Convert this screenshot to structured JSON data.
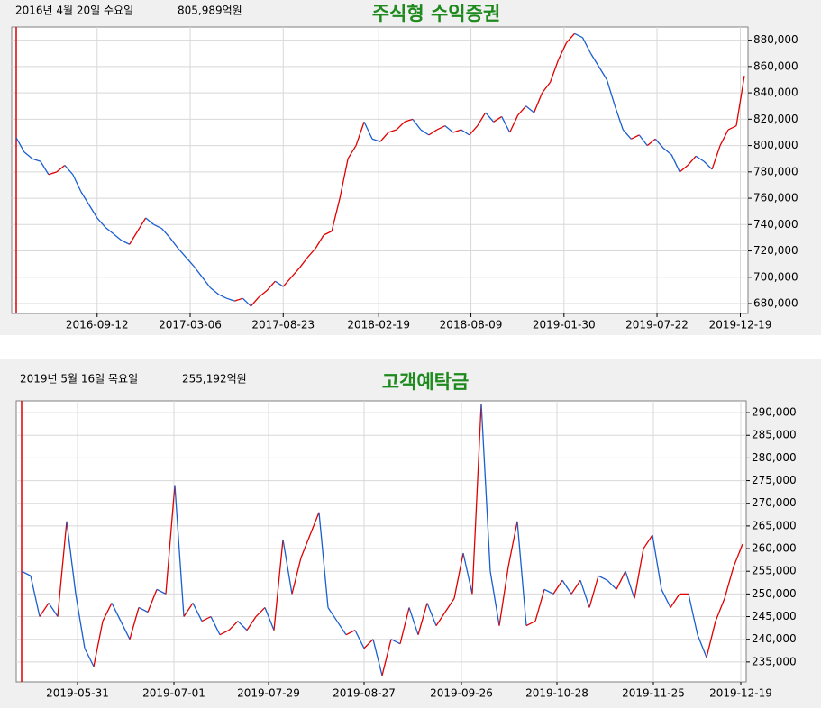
{
  "chart_data": [
    {
      "type": "line",
      "title": "주식형 수익증권",
      "cursor_date": "2016년 4월 20일 수요일",
      "cursor_value": "805,989억원",
      "up_color": "#e00000",
      "down_color": "#1a5fd0",
      "grid": true,
      "ylim": [
        672500,
        890000
      ],
      "yticks": [
        {
          "value": 680000,
          "label": "680,000"
        },
        {
          "value": 700000,
          "label": "700,000"
        },
        {
          "value": 720000,
          "label": "720,000"
        },
        {
          "value": 740000,
          "label": "740,000"
        },
        {
          "value": 760000,
          "label": "760,000"
        },
        {
          "value": 780000,
          "label": "780,000"
        },
        {
          "value": 800000,
          "label": "800,000"
        },
        {
          "value": 820000,
          "label": "820,000"
        },
        {
          "value": 840000,
          "label": "840,000"
        },
        {
          "value": 860000,
          "label": "860,000"
        },
        {
          "value": 880000,
          "label": "880,000"
        }
      ],
      "xticks": [
        {
          "value": 10,
          "label": "2016-09-12"
        },
        {
          "value": 21.5,
          "label": "2017-03-06"
        },
        {
          "value": 33,
          "label": "2017-08-23"
        },
        {
          "value": 44.8,
          "label": "2018-02-19"
        },
        {
          "value": 56.2,
          "label": "2018-08-09"
        },
        {
          "value": 67.7,
          "label": "2019-01-30"
        },
        {
          "value": 79.2,
          "label": "2019-07-22"
        },
        {
          "value": 89.5,
          "label": "2019-12-19"
        }
      ],
      "values": [
        806000,
        795000,
        790000,
        788000,
        778000,
        780000,
        785000,
        778000,
        765000,
        755000,
        745000,
        738000,
        733000,
        728000,
        725000,
        735000,
        745000,
        740000,
        737000,
        730000,
        722000,
        715000,
        708000,
        700000,
        692000,
        687000,
        684000,
        682000,
        684000,
        678000,
        685000,
        690000,
        697000,
        693000,
        700000,
        707000,
        715000,
        722000,
        732000,
        735000,
        760000,
        790000,
        800000,
        818000,
        805000,
        803000,
        810000,
        812000,
        818000,
        820000,
        812000,
        808000,
        812000,
        815000,
        810000,
        812000,
        808000,
        815000,
        825000,
        818000,
        822000,
        810000,
        823000,
        830000,
        825000,
        840000,
        848000,
        865000,
        878000,
        885000,
        882000,
        870000,
        860000,
        850000,
        830000,
        812000,
        805000,
        808000,
        800000,
        805000,
        798000,
        793000,
        780000,
        785000,
        792000,
        788000,
        782000,
        800000,
        812000,
        815000,
        853000
      ]
    },
    {
      "type": "line",
      "title": "고객예탁금",
      "cursor_date": "2019년 5월 16일 목요일",
      "cursor_value": "255,192억원",
      "up_color": "#e00000",
      "down_color": "#1a5fd0",
      "grid": true,
      "ylim": [
        230600,
        292600
      ],
      "yticks": [
        {
          "value": 235000,
          "label": "235,000"
        },
        {
          "value": 240000,
          "label": "240,000"
        },
        {
          "value": 245000,
          "label": "245,000"
        },
        {
          "value": 250000,
          "label": "250,000"
        },
        {
          "value": 255000,
          "label": "255,000"
        },
        {
          "value": 260000,
          "label": "260,000"
        },
        {
          "value": 265000,
          "label": "265,000"
        },
        {
          "value": 270000,
          "label": "270,000"
        },
        {
          "value": 275000,
          "label": "275,000"
        },
        {
          "value": 280000,
          "label": "280,000"
        },
        {
          "value": 285000,
          "label": "285,000"
        },
        {
          "value": 290000,
          "label": "290,000"
        }
      ],
      "xticks": [
        {
          "value": 6.2,
          "label": "2019-05-31"
        },
        {
          "value": 16.9,
          "label": "2019-07-01"
        },
        {
          "value": 27.4,
          "label": "2019-07-29"
        },
        {
          "value": 38,
          "label": "2019-08-27"
        },
        {
          "value": 48.8,
          "label": "2019-09-26"
        },
        {
          "value": 59.4,
          "label": "2019-10-28"
        },
        {
          "value": 70.1,
          "label": "2019-11-25"
        },
        {
          "value": 79.8,
          "label": "2019-12-19"
        }
      ],
      "values": [
        255000,
        254000,
        245000,
        248000,
        245000,
        266000,
        250000,
        238000,
        234000,
        244000,
        248000,
        244000,
        240000,
        247000,
        246000,
        251000,
        250000,
        274000,
        245000,
        248000,
        244000,
        245000,
        241000,
        242000,
        244000,
        242000,
        245000,
        247000,
        242000,
        262000,
        250000,
        258000,
        263000,
        268000,
        247000,
        244000,
        241000,
        242000,
        238000,
        240000,
        232000,
        240000,
        239000,
        247000,
        241000,
        248000,
        243000,
        246000,
        249000,
        259000,
        250000,
        292000,
        255000,
        243000,
        256000,
        266000,
        243000,
        244000,
        251000,
        250000,
        253000,
        250000,
        253000,
        247000,
        254000,
        253000,
        251000,
        255000,
        249000,
        260000,
        263000,
        251000,
        247000,
        250000,
        250000,
        241000,
        236000,
        244000,
        249000,
        256000,
        261000
      ]
    }
  ]
}
